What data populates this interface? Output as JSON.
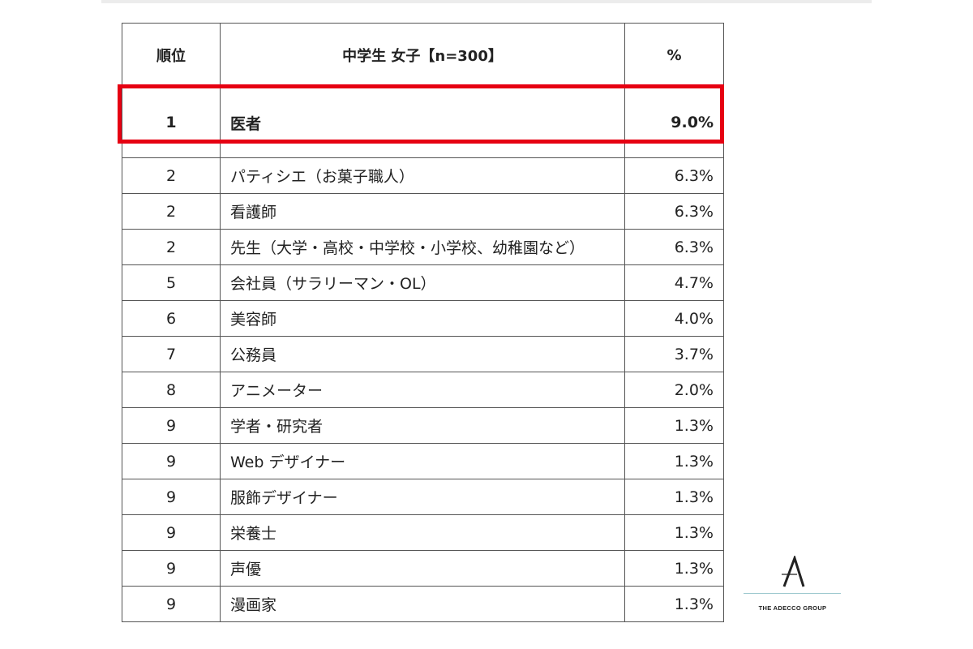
{
  "table": {
    "headers": {
      "rank": "順位",
      "name": "中学生 女子【n=300】",
      "percent": "%"
    },
    "rows": [
      {
        "rank": "1",
        "name": "医者",
        "percent": "9.0%"
      },
      {
        "rank": "2",
        "name": "パティシエ（お菓子職人）",
        "percent": "6.3%"
      },
      {
        "rank": "2",
        "name": "看護師",
        "percent": "6.3%"
      },
      {
        "rank": "2",
        "name": "先生（大学・高校・中学校・小学校、幼稚園など）",
        "percent": "6.3%"
      },
      {
        "rank": "5",
        "name": "会社員（サラリーマン・OL）",
        "percent": "4.7%"
      },
      {
        "rank": "6",
        "name": "美容師",
        "percent": "4.0%"
      },
      {
        "rank": "7",
        "name": "公務員",
        "percent": "3.7%"
      },
      {
        "rank": "8",
        "name": "アニメーター",
        "percent": "2.0%"
      },
      {
        "rank": "9",
        "name": "学者・研究者",
        "percent": "1.3%"
      },
      {
        "rank": "9",
        "name": "Web デザイナー",
        "percent": "1.3%"
      },
      {
        "rank": "9",
        "name": "服飾デザイナー",
        "percent": "1.3%"
      },
      {
        "rank": "9",
        "name": "栄養士",
        "percent": "1.3%"
      },
      {
        "rank": "9",
        "name": "声優",
        "percent": "1.3%"
      },
      {
        "rank": "9",
        "name": "漫画家",
        "percent": "1.3%"
      }
    ]
  },
  "highlight": {
    "color": "#e60012",
    "row_rank": "1"
  },
  "logo": {
    "text": "THE ADECCO GROUP",
    "mark": "A",
    "line_color": "#9ec9cf"
  }
}
